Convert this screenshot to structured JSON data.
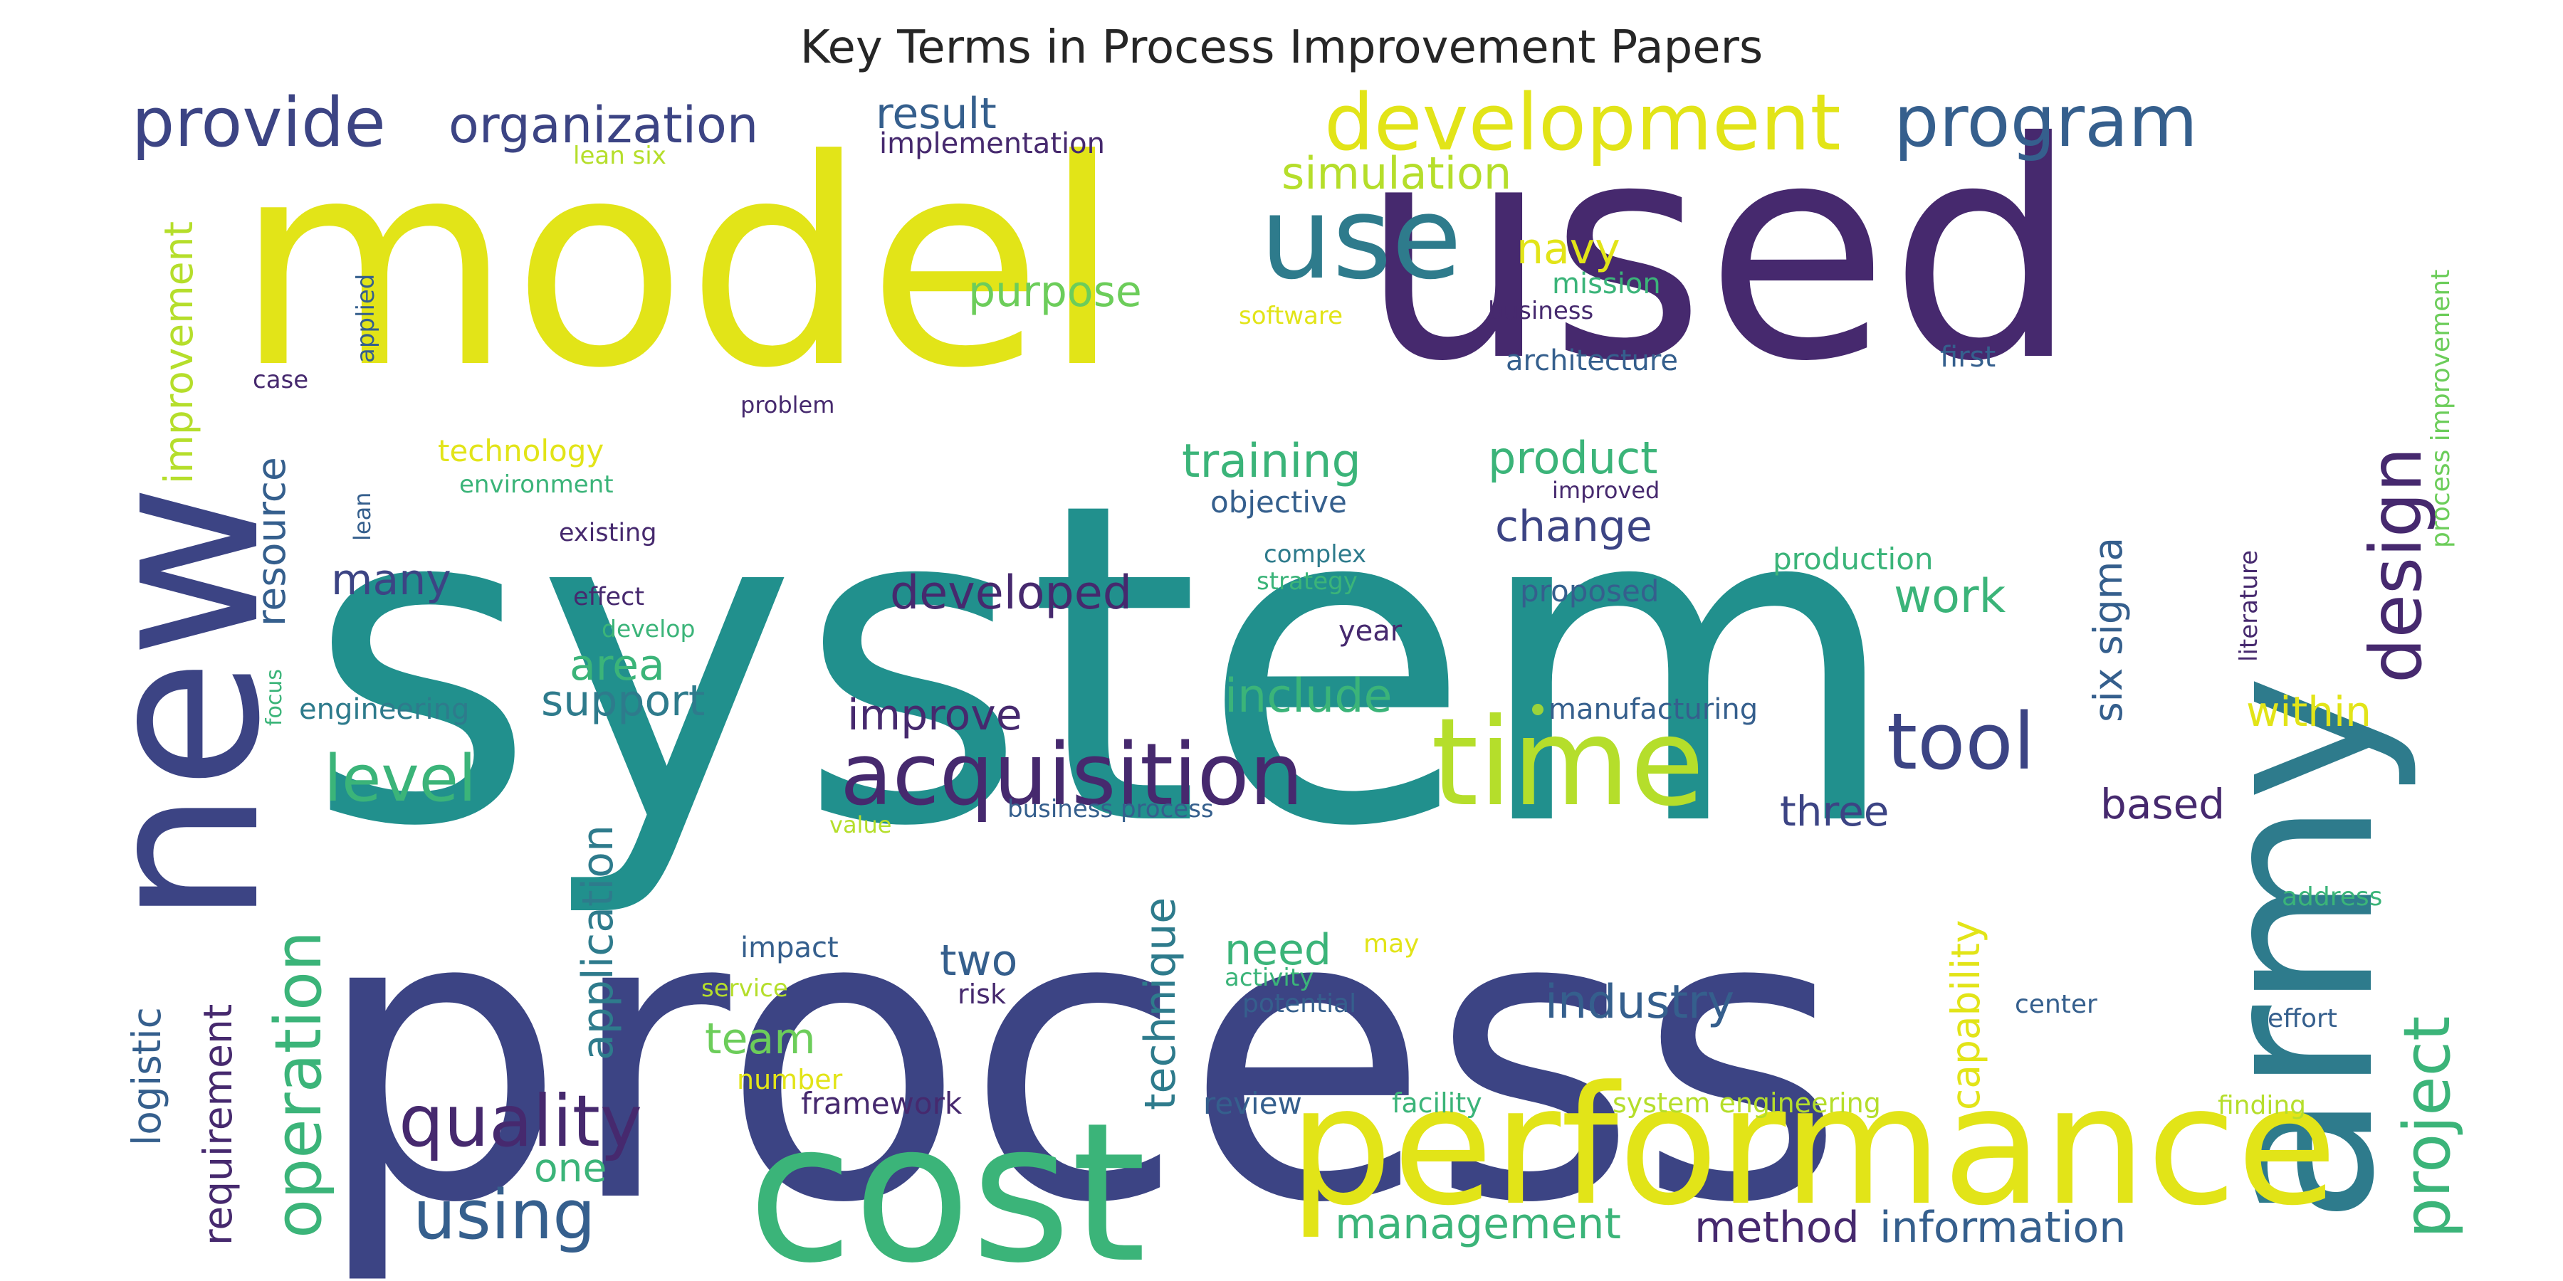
{
  "title": "Key Terms in Process Improvement Papers",
  "palette": {
    "purple": "#46296e",
    "indigo": "#3c4484",
    "blue": "#355f8d",
    "steel": "#2e7b8c",
    "teal": "#21908d",
    "green": "#3bb479",
    "lime": "#9bd33a",
    "yellow": "#e2e418"
  },
  "words": [
    {
      "text": "system",
      "color": "#21908d"
    },
    {
      "text": "process",
      "color": "#3c4484"
    },
    {
      "text": "model",
      "color": "#e2e418"
    },
    {
      "text": "used",
      "color": "#46296e"
    },
    {
      "text": "cost",
      "color": "#3bb479"
    },
    {
      "text": "new",
      "color": "#3c4484"
    },
    {
      "text": "army",
      "color": "#2e7b8c"
    },
    {
      "text": "performance",
      "color": "#e2e418"
    },
    {
      "text": "time",
      "color": "#b5de2b"
    },
    {
      "text": "use",
      "color": "#2e7b8c"
    },
    {
      "text": "acquisition",
      "color": "#46296e"
    },
    {
      "text": "development",
      "color": "#e2e418"
    },
    {
      "text": "program",
      "color": "#355f8d"
    },
    {
      "text": "provide",
      "color": "#3c4484"
    },
    {
      "text": "organization",
      "color": "#3c4484"
    },
    {
      "text": "quality",
      "color": "#46296e"
    },
    {
      "text": "tool",
      "color": "#3c4484"
    },
    {
      "text": "design",
      "color": "#46296e"
    },
    {
      "text": "project",
      "color": "#3bb479"
    },
    {
      "text": "operation",
      "color": "#3bb479"
    },
    {
      "text": "level",
      "color": "#3bb479"
    },
    {
      "text": "using",
      "color": "#355f8d"
    },
    {
      "text": "result",
      "color": "#355f8d"
    },
    {
      "text": "simulation",
      "color": "#b5de2b"
    },
    {
      "text": "navy",
      "color": "#e2e418"
    },
    {
      "text": "purpose",
      "color": "#6ccd5a"
    },
    {
      "text": "training",
      "color": "#3bb479"
    },
    {
      "text": "product",
      "color": "#3bb479"
    },
    {
      "text": "change",
      "color": "#3c4484"
    },
    {
      "text": "developed",
      "color": "#46296e"
    },
    {
      "text": "improve",
      "color": "#46296e"
    },
    {
      "text": "include",
      "color": "#3bb479"
    },
    {
      "text": "many",
      "color": "#3c4484"
    },
    {
      "text": "area",
      "color": "#3bb479"
    },
    {
      "text": "support",
      "color": "#2e7b8c"
    },
    {
      "text": "resource",
      "color": "#355f8d"
    },
    {
      "text": "improvement",
      "color": "#b5de2b"
    },
    {
      "text": "requirement",
      "color": "#46296e"
    },
    {
      "text": "logistic",
      "color": "#355f8d"
    },
    {
      "text": "application",
      "color": "#2e7b8c"
    },
    {
      "text": "technique",
      "color": "#2e7b8c"
    },
    {
      "text": "capability",
      "color": "#e2e418"
    },
    {
      "text": "six sigma",
      "color": "#355f8d"
    },
    {
      "text": "work",
      "color": "#3bb479"
    },
    {
      "text": "three",
      "color": "#3c4484"
    },
    {
      "text": "based",
      "color": "#46296e"
    },
    {
      "text": "within",
      "color": "#e2e418"
    },
    {
      "text": "industry",
      "color": "#355f8d"
    },
    {
      "text": "two",
      "color": "#355f8d"
    },
    {
      "text": "team",
      "color": "#6ccd5a"
    },
    {
      "text": "need",
      "color": "#3bb479"
    },
    {
      "text": "management",
      "color": "#3bb479"
    },
    {
      "text": "method",
      "color": "#46296e"
    },
    {
      "text": "information",
      "color": "#355f8d"
    },
    {
      "text": "one",
      "color": "#3bb479"
    },
    {
      "text": "implementation",
      "color": "#46296e"
    },
    {
      "text": "lean six",
      "color": "#b5de2b"
    },
    {
      "text": "mission",
      "color": "#3bb479"
    },
    {
      "text": "business",
      "color": "#46296e"
    },
    {
      "text": "software",
      "color": "#e2e418"
    },
    {
      "text": "architecture",
      "color": "#355f8d"
    },
    {
      "text": "first",
      "color": "#355f8d"
    },
    {
      "text": "applied",
      "color": "#355f8d"
    },
    {
      "text": "case",
      "color": "#46296e"
    },
    {
      "text": "problem",
      "color": "#46296e"
    },
    {
      "text": "technology",
      "color": "#e2e418"
    },
    {
      "text": "environment",
      "color": "#3bb479"
    },
    {
      "text": "lean",
      "color": "#355f8d"
    },
    {
      "text": "existing",
      "color": "#46296e"
    },
    {
      "text": "effect",
      "color": "#46296e"
    },
    {
      "text": "develop",
      "color": "#3bb479"
    },
    {
      "text": "focus",
      "color": "#3bb479"
    },
    {
      "text": "engineering",
      "color": "#2e7b8c"
    },
    {
      "text": "objective",
      "color": "#355f8d"
    },
    {
      "text": "complex",
      "color": "#2e7b8c"
    },
    {
      "text": "strategy",
      "color": "#3bb479"
    },
    {
      "text": "year",
      "color": "#46296e"
    },
    {
      "text": "proposed",
      "color": "#355f8d"
    },
    {
      "text": "improved",
      "color": "#46296e"
    },
    {
      "text": "production",
      "color": "#3bb479"
    },
    {
      "text": "manufacturing",
      "color": "#355f8d"
    },
    {
      "text": "literature",
      "color": "#46296e"
    },
    {
      "text": "process improvement",
      "color": "#6ccd5a"
    },
    {
      "text": "value",
      "color": "#b5de2b"
    },
    {
      "text": "business process",
      "color": "#355f8d"
    },
    {
      "text": "impact",
      "color": "#355f8d"
    },
    {
      "text": "service",
      "color": "#b5de2b"
    },
    {
      "text": "risk",
      "color": "#46296e"
    },
    {
      "text": "number",
      "color": "#e2e418"
    },
    {
      "text": "framework",
      "color": "#46296e"
    },
    {
      "text": "may",
      "color": "#e2e418"
    },
    {
      "text": "activity",
      "color": "#3bb479"
    },
    {
      "text": "potential",
      "color": "#355f8d"
    },
    {
      "text": "review",
      "color": "#355f8d"
    },
    {
      "text": "facility",
      "color": "#3bb479"
    },
    {
      "text": "system engineering",
      "color": "#b5de2b"
    },
    {
      "text": "address",
      "color": "#3bb479"
    },
    {
      "text": "center",
      "color": "#355f8d"
    },
    {
      "text": "effort",
      "color": "#355f8d"
    },
    {
      "text": "finding",
      "color": "#b5de2b"
    }
  ]
}
